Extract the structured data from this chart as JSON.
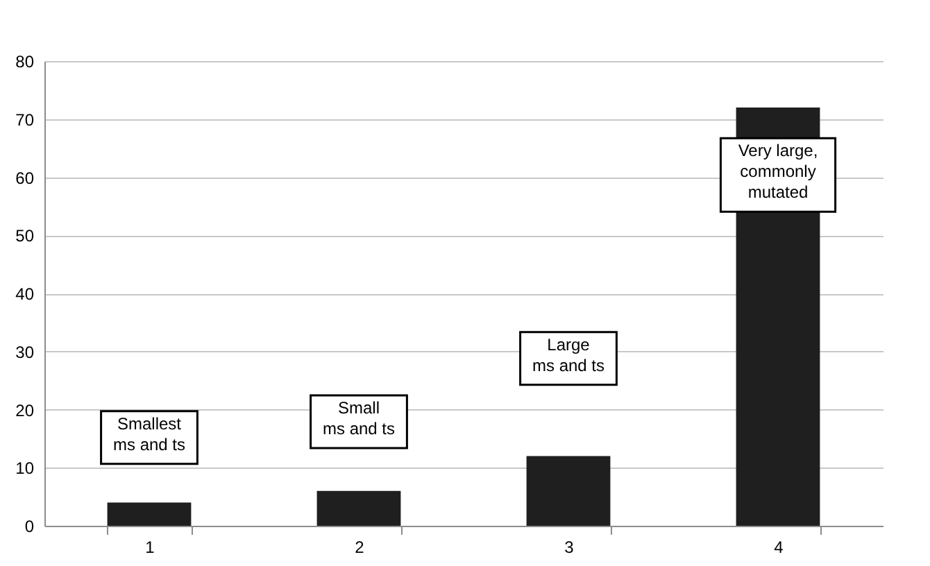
{
  "chart_data": {
    "type": "bar",
    "categories": [
      "1",
      "2",
      "3",
      "4"
    ],
    "values": [
      4,
      6,
      12,
      72
    ],
    "color": "#1f1f1f",
    "ylim": [
      0,
      80
    ],
    "yticks": [
      0,
      10,
      20,
      30,
      40,
      50,
      60,
      70,
      80
    ],
    "grid": "y",
    "annotations": [
      "Smallest\nms and ts",
      "Small\nms and ts",
      "Large\nms and ts",
      "Very large,\ncommonly\nmutated"
    ]
  }
}
